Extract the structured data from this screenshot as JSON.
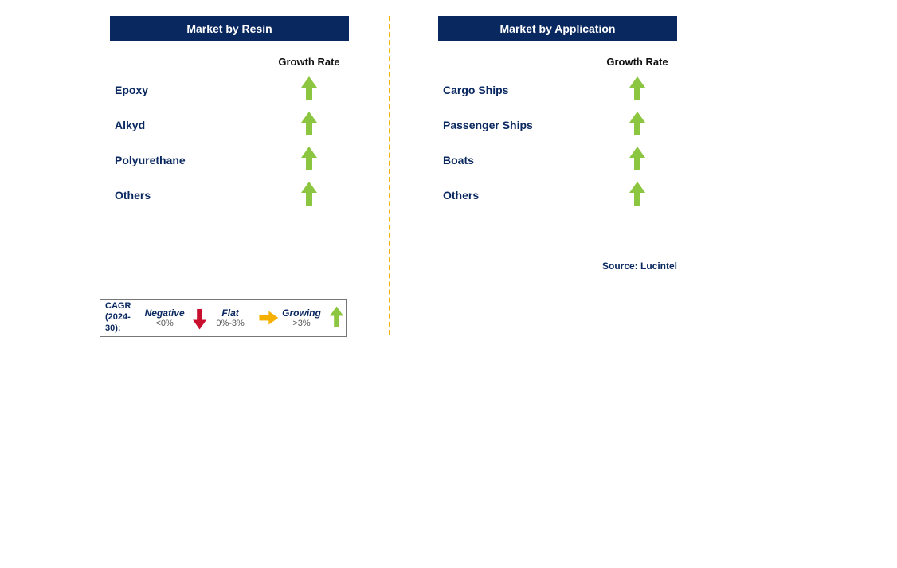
{
  "panels": {
    "left": {
      "title": "Market by Resin",
      "column_header": "Growth Rate",
      "rows": [
        {
          "label": "Epoxy",
          "trend": "up",
          "trend_color": "#8cc540"
        },
        {
          "label": "Alkyd",
          "trend": "up",
          "trend_color": "#8cc540"
        },
        {
          "label": "Polyurethane",
          "trend": "up",
          "trend_color": "#8cc540"
        },
        {
          "label": "Others",
          "trend": "up",
          "trend_color": "#8cc540"
        }
      ]
    },
    "right": {
      "title": "Market by Application",
      "column_header": "Growth Rate",
      "rows": [
        {
          "label": "Cargo Ships",
          "trend": "up",
          "trend_color": "#8cc540"
        },
        {
          "label": "Passenger Ships",
          "trend": "up",
          "trend_color": "#8cc540"
        },
        {
          "label": "Boats",
          "trend": "up",
          "trend_color": "#8cc540"
        },
        {
          "label": "Others",
          "trend": "up",
          "trend_color": "#8cc540"
        }
      ]
    }
  },
  "legend": {
    "heading_line1": "CAGR",
    "heading_line2": "(2024-30):",
    "items": [
      {
        "label": "Negative",
        "range": "<0%",
        "arrow": "down",
        "arrow_color": "#c8102e"
      },
      {
        "label": "Flat",
        "range": "0%-3%",
        "arrow": "right",
        "arrow_color": "#f5b000"
      },
      {
        "label": "Growing",
        "range": ">3%",
        "arrow": "up",
        "arrow_color": "#8cc540"
      }
    ]
  },
  "colors": {
    "title_bar_bg": "#0a2860",
    "title_bar_text": "#ffffff",
    "label_text": "#0a2860",
    "divider": "#f2b600",
    "background": "#ffffff"
  },
  "source": "Source: Lucintel"
}
